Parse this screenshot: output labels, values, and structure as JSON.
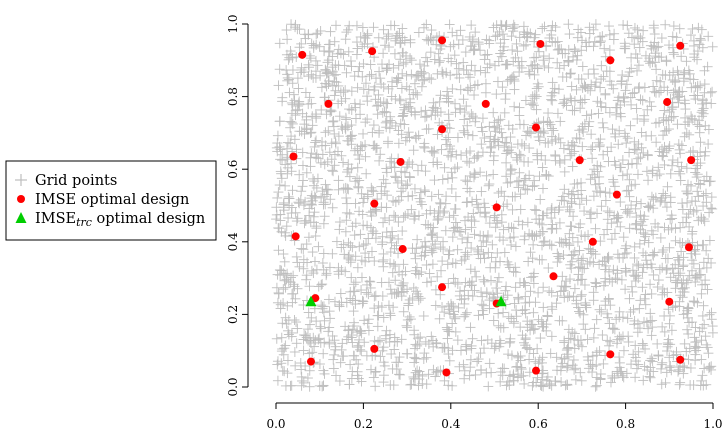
{
  "chart_data": {
    "type": "scatter",
    "xlim": [
      0.0,
      1.0
    ],
    "ylim": [
      0.0,
      1.0
    ],
    "x_ticks": [
      "0.0",
      "0.2",
      "0.4",
      "0.6",
      "0.8",
      "1.0"
    ],
    "y_ticks": [
      "0.0",
      "0.2",
      "0.4",
      "0.6",
      "0.8",
      "1.0"
    ],
    "grid": false,
    "legend": {
      "placement": "left-outside",
      "entries": [
        {
          "label": "Grid points",
          "marker": "plus",
          "color": "#bebebe"
        },
        {
          "label": "IMSE optimal design",
          "marker": "circle",
          "color": "#ff0000"
        },
        {
          "label_main": "IMSE",
          "label_sub": "trc",
          "label_rest": " optimal design",
          "marker": "triangle",
          "color": "#00cd00"
        }
      ]
    },
    "series": [
      {
        "marker": "plus",
        "color": "#bebebe",
        "note": "dense uniform cloud over the unit square",
        "count": 3000
      },
      {
        "name": "IMSE optimal design",
        "marker": "circle",
        "color": "#ff0000",
        "points": [
          [
            0.06,
            0.915
          ],
          [
            0.22,
            0.925
          ],
          [
            0.38,
            0.955
          ],
          [
            0.605,
            0.945
          ],
          [
            0.765,
            0.9
          ],
          [
            0.925,
            0.94
          ],
          [
            0.12,
            0.78
          ],
          [
            0.48,
            0.78
          ],
          [
            0.38,
            0.71
          ],
          [
            0.595,
            0.715
          ],
          [
            0.895,
            0.785
          ],
          [
            0.04,
            0.635
          ],
          [
            0.285,
            0.62
          ],
          [
            0.695,
            0.625
          ],
          [
            0.95,
            0.625
          ],
          [
            0.78,
            0.53
          ],
          [
            0.225,
            0.505
          ],
          [
            0.505,
            0.495
          ],
          [
            0.045,
            0.415
          ],
          [
            0.29,
            0.38
          ],
          [
            0.725,
            0.4
          ],
          [
            0.945,
            0.385
          ],
          [
            0.635,
            0.305
          ],
          [
            0.38,
            0.275
          ],
          [
            0.09,
            0.245
          ],
          [
            0.505,
            0.23
          ],
          [
            0.9,
            0.235
          ],
          [
            0.225,
            0.105
          ],
          [
            0.765,
            0.09
          ],
          [
            0.925,
            0.075
          ],
          [
            0.08,
            0.07
          ],
          [
            0.39,
            0.04
          ],
          [
            0.595,
            0.045
          ]
        ]
      },
      {
        "name": "IMSE_trc optimal design",
        "marker": "triangle",
        "color": "#00cd00",
        "points": [
          [
            0.08,
            0.235
          ],
          [
            0.515,
            0.235
          ]
        ]
      }
    ]
  }
}
